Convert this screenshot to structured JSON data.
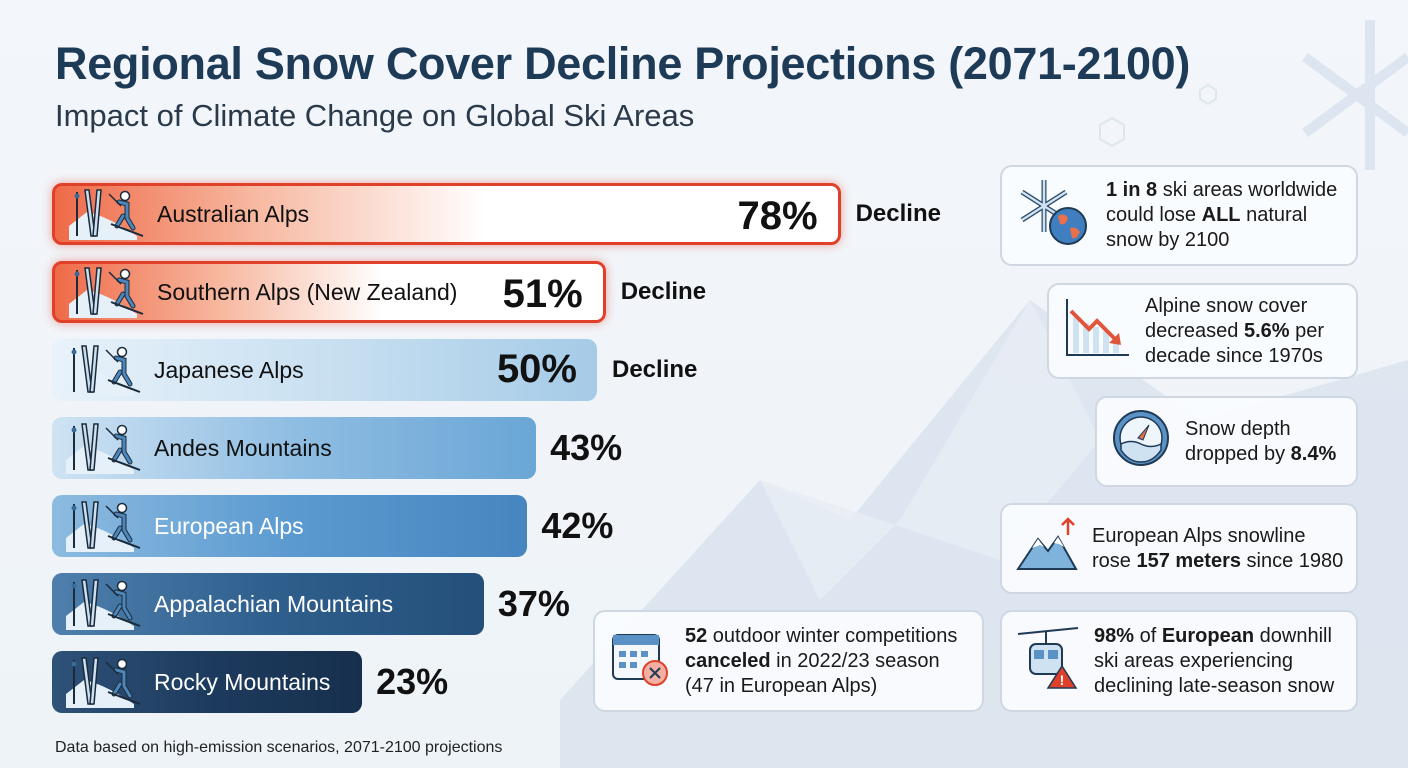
{
  "title": "Regional Snow Cover Decline Projections (2071-2100)",
  "subtitle": "Impact of Climate Change on Global Ski Areas",
  "footer": "Data based on high-emission scenarios, 2071-2100 projections",
  "decline_label": "Decline",
  "chart_data": {
    "type": "bar",
    "orientation": "horizontal",
    "title": "Regional Snow Cover Decline Projections (2071-2100)",
    "categories": [
      "Australian Alps",
      "Southern Alps (New Zealand)",
      "Japanese Alps",
      "Andes Mountains",
      "European Alps",
      "Appalachian Mountains",
      "Rocky Mountains"
    ],
    "values": [
      78,
      51,
      50,
      43,
      42,
      37,
      23
    ],
    "value_labels": [
      "78%",
      "51%",
      "50%",
      "43%",
      "42%",
      "37%",
      "23%"
    ],
    "unit": "%",
    "highlighted": [
      "Australian Alps",
      "Southern Alps (New Zealand)"
    ],
    "colors": {
      "highlight": "#e0402a",
      "japan": "#a9cfe9",
      "andes": "#7fb3dc",
      "europe": "#4f8ec6",
      "appalachian": "#2d5c89",
      "rocky": "#1a3658"
    },
    "bar_icon": "skier-icon",
    "grid": false
  },
  "cards": [
    {
      "icon": "snowflake-globe-icon",
      "parts": [
        {
          "t": "1 in 8",
          "b": true
        },
        {
          "t": " ski areas worldwide could lose "
        },
        {
          "t": "ALL",
          "b": true
        },
        {
          "t": " natural snow by 2100"
        }
      ]
    },
    {
      "icon": "declining-chart-icon",
      "parts": [
        {
          "t": "Alpine snow cover decreased "
        },
        {
          "t": "5.6%",
          "b": true
        },
        {
          "t": " per decade since 1970s"
        }
      ]
    },
    {
      "icon": "snow-depth-gauge-icon",
      "parts": [
        {
          "t": "Snow depth dropped by "
        },
        {
          "t": "8.4%",
          "b": true
        }
      ]
    },
    {
      "icon": "mountain-snowline-up-icon",
      "parts": [
        {
          "t": "European Alps snowline rose "
        },
        {
          "t": "157 meters",
          "b": true
        },
        {
          "t": " since 1980"
        }
      ]
    },
    {
      "icon": "gondola-warning-icon",
      "parts": [
        {
          "t": "98%",
          "b": true
        },
        {
          "t": " of "
        },
        {
          "t": "European",
          "b": true
        },
        {
          "t": " downhill ski areas experiencing declining late-season snow"
        }
      ]
    },
    {
      "icon": "calendar-cancel-icon",
      "parts": [
        {
          "t": "52",
          "b": true
        },
        {
          "t": " outdoor winter competitions "
        },
        {
          "t": "canceled",
          "b": true
        },
        {
          "t": " in 2022/23 season (47 in European Alps)"
        }
      ]
    }
  ]
}
